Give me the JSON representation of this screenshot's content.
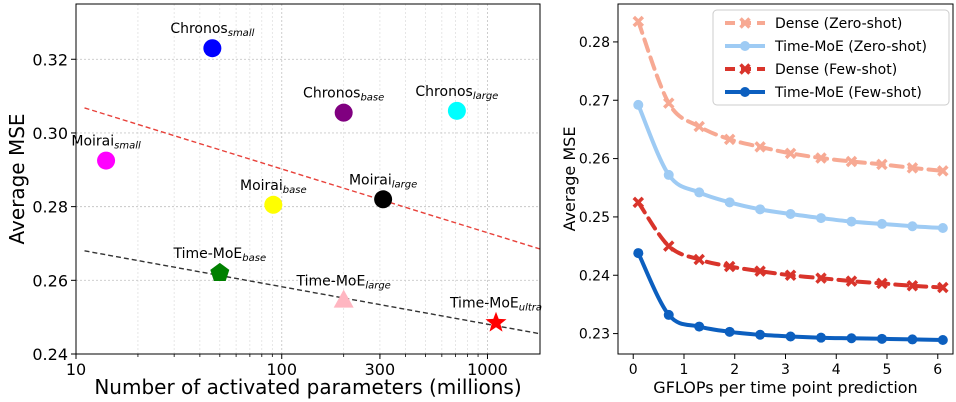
{
  "chart_data": [
    {
      "type": "scatter",
      "xlabel": "Number of activated parameters (millions)",
      "ylabel": "Average MSE",
      "xscale": "log",
      "xlim": [
        10,
        1800
      ],
      "ylim": [
        0.24,
        0.335
      ],
      "xticks": [
        10,
        100,
        300,
        1000
      ],
      "xtick_labels": [
        "10",
        "100",
        "300",
        "1000"
      ],
      "yticks": [
        0.24,
        0.26,
        0.28,
        0.3,
        0.32
      ],
      "ytick_labels": [
        "0.24",
        "0.26",
        "0.28",
        "0.30",
        "0.32"
      ],
      "grid": true,
      "points": [
        {
          "base": "Chronos",
          "sub": "small",
          "x": 46,
          "y": 0.323,
          "color": "#0000ff",
          "marker": "circle",
          "label_pos": "above"
        },
        {
          "base": "Chronos",
          "sub": "base",
          "x": 200,
          "y": 0.3055,
          "color": "#800080",
          "marker": "circle",
          "label_pos": "above"
        },
        {
          "base": "Chronos",
          "sub": "large",
          "x": 710,
          "y": 0.306,
          "color": "#00ffff",
          "marker": "circle",
          "label_pos": "above"
        },
        {
          "base": "Moirai",
          "sub": "small",
          "x": 14,
          "y": 0.2925,
          "color": "#ff00ff",
          "marker": "circle",
          "label_pos": "above"
        },
        {
          "base": "Moirai",
          "sub": "base",
          "x": 91,
          "y": 0.2805,
          "color": "#ffff00",
          "marker": "circle",
          "label_pos": "above"
        },
        {
          "base": "Moirai",
          "sub": "large",
          "x": 311,
          "y": 0.282,
          "color": "#000000",
          "marker": "circle",
          "label_pos": "above"
        },
        {
          "base": "Time-MoE",
          "sub": "base",
          "x": 50,
          "y": 0.262,
          "color": "#008000",
          "marker": "pentagon",
          "label_pos": "above"
        },
        {
          "base": "Time-MoE",
          "sub": "large",
          "x": 200,
          "y": 0.2545,
          "color": "#ffb6c1",
          "marker": "triangle",
          "label_pos": "above"
        },
        {
          "base": "Time-MoE",
          "sub": "ultra",
          "x": 1100,
          "y": 0.2485,
          "color": "#ff0000",
          "marker": "star",
          "label_pos": "above"
        }
      ],
      "trendlines": [
        {
          "color": "#e8413a",
          "style": "dashed",
          "x": [
            11,
            1800
          ],
          "y": [
            0.3068,
            0.2685
          ]
        },
        {
          "color": "#333333",
          "style": "dashed",
          "x": [
            11,
            1800
          ],
          "y": [
            0.268,
            0.2455
          ]
        }
      ]
    },
    {
      "type": "line",
      "xlabel": "GFLOPs per time point prediction",
      "ylabel": "Average MSE",
      "xlim": [
        -0.3,
        6.3
      ],
      "ylim": [
        0.2265,
        0.2865
      ],
      "xticks": [
        0,
        1,
        2,
        3,
        4,
        5,
        6
      ],
      "xtick_labels": [
        "0",
        "1",
        "2",
        "3",
        "4",
        "5",
        "6"
      ],
      "yticks": [
        0.23,
        0.24,
        0.25,
        0.26,
        0.27,
        0.28
      ],
      "ytick_labels": [
        "0.23",
        "0.24",
        "0.25",
        "0.26",
        "0.27",
        "0.28"
      ],
      "legend_placement": "top-right",
      "x": [
        0.1,
        0.7,
        1.3,
        1.9,
        2.5,
        3.1,
        3.7,
        4.3,
        4.9,
        5.5,
        6.1
      ],
      "series": [
        {
          "name": "Dense (Zero-shot)",
          "color": "#f7a993",
          "style": "dashed",
          "marker": "x",
          "values": [
            0.2835,
            0.2695,
            0.2655,
            0.2633,
            0.262,
            0.2609,
            0.2601,
            0.2595,
            0.259,
            0.2584,
            0.2579
          ]
        },
        {
          "name": "Time-MoE (Zero-shot)",
          "color": "#9ecbf4",
          "style": "solid",
          "marker": "circle",
          "values": [
            0.2692,
            0.2572,
            0.2542,
            0.2525,
            0.2513,
            0.2505,
            0.2498,
            0.2492,
            0.2488,
            0.2484,
            0.2481
          ]
        },
        {
          "name": "Dense (Few-shot)",
          "color": "#d9342b",
          "style": "dashed",
          "marker": "x",
          "values": [
            0.2525,
            0.245,
            0.2427,
            0.2415,
            0.2407,
            0.24,
            0.2395,
            0.239,
            0.2386,
            0.2382,
            0.2379
          ]
        },
        {
          "name": "Time-MoE (Few-shot)",
          "color": "#0c5fbf",
          "style": "solid",
          "marker": "circle",
          "values": [
            0.2438,
            0.2332,
            0.2312,
            0.2303,
            0.2298,
            0.2295,
            0.2293,
            0.2292,
            0.2291,
            0.229,
            0.2289
          ]
        }
      ]
    }
  ]
}
